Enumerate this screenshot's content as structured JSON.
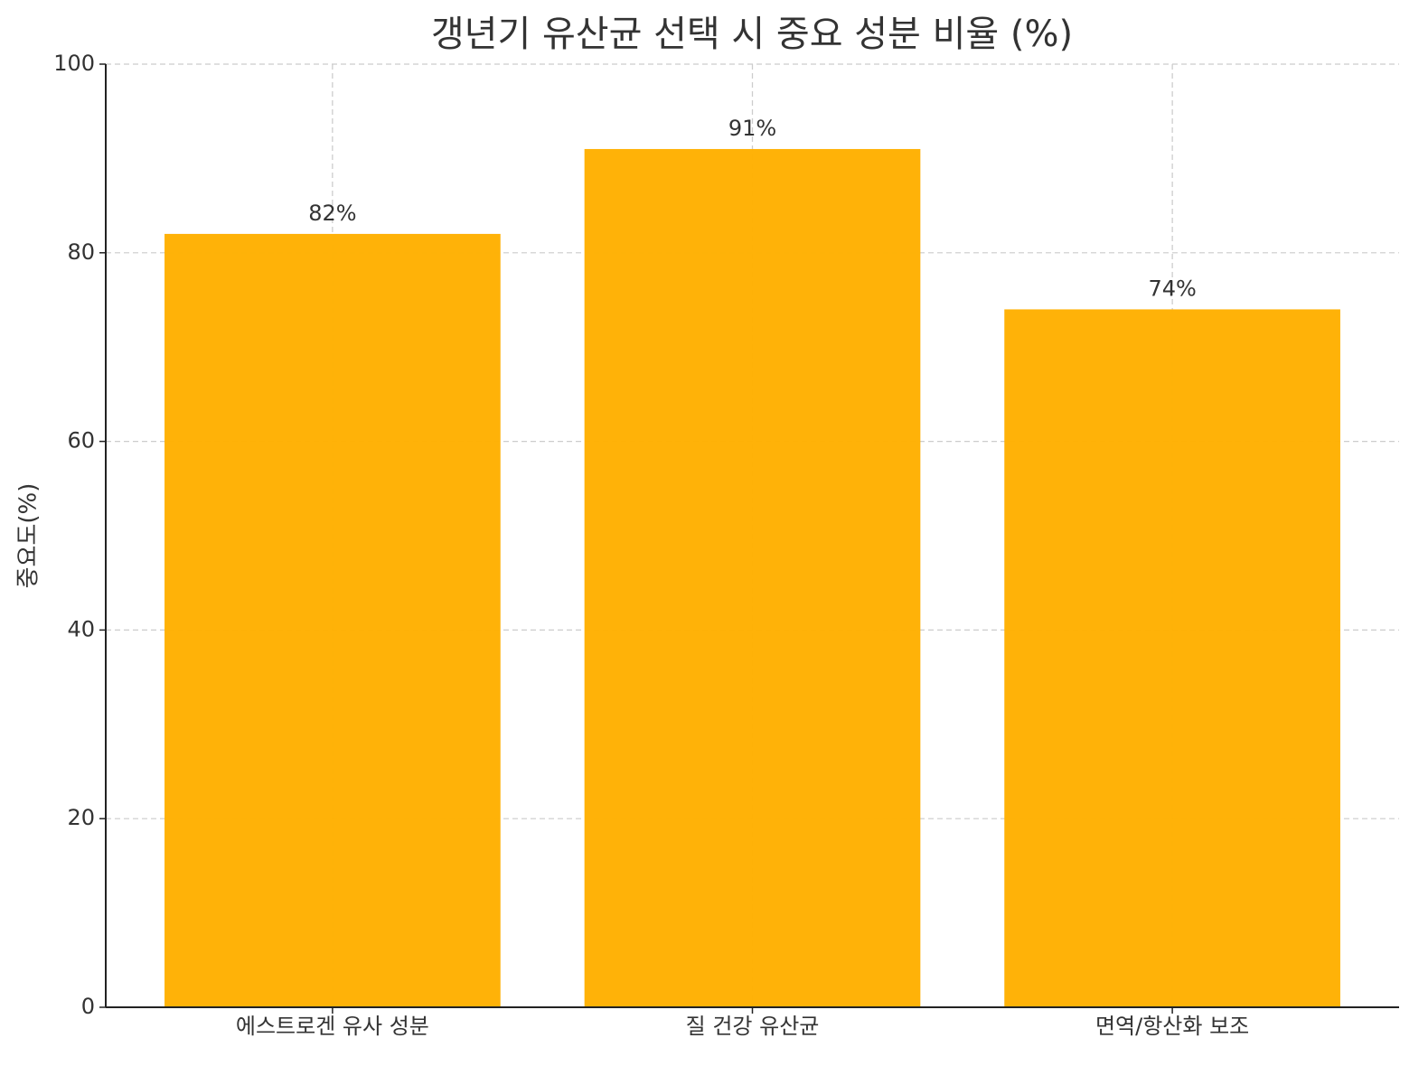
{
  "chart_data": {
    "type": "bar",
    "title": "갱년기 유산균 선택 시 중요 성분 비율 (%)",
    "y_label": "중요도(%)",
    "categories": [
      "에스트로겐 유사 성분",
      "질 건강 유산균",
      "면역/항산화 보조"
    ],
    "values": [
      82,
      91,
      74
    ],
    "value_labels": [
      "82%",
      "91%",
      "74%"
    ],
    "color": "#ffb000",
    "ylim": [
      0,
      100
    ],
    "yticks": [
      0,
      20,
      40,
      60,
      80,
      100
    ],
    "grid": true
  }
}
